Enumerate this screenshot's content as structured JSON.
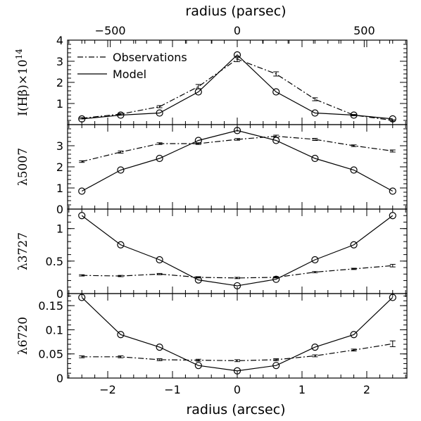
{
  "chart_data": {
    "type": "line",
    "xlabel_bottom": "radius (arcsec)",
    "xlabel_top": "radius (parsec)",
    "x_ticks_bottom": [
      "−2",
      "−1",
      "0",
      "1",
      "2"
    ],
    "x_ticks_top": [
      "−500",
      "0",
      "500"
    ],
    "xlim": [
      -2.62,
      2.62
    ],
    "top_axis_scale_parsec_per_arcsec": 255,
    "x": [
      -2.4,
      -1.8,
      -1.2,
      -0.6,
      0,
      0.6,
      1.2,
      1.8,
      2.4
    ],
    "legend": {
      "observations": "Observations",
      "model": "Model",
      "position": "top-left"
    },
    "panels": [
      {
        "ylabel": "I(Hβ)×10",
        "ylabel_exp": "14",
        "ylim": [
          0,
          4
        ],
        "yticks": [
          "1",
          "2",
          "3",
          "4"
        ],
        "model": [
          0.27,
          0.45,
          0.55,
          1.55,
          3.3,
          1.55,
          0.55,
          0.45,
          0.27
        ],
        "obs": [
          0.3,
          0.5,
          0.85,
          1.8,
          3.1,
          2.4,
          1.2,
          0.45,
          0.2
        ],
        "obs_err": [
          0.03,
          0.03,
          0.05,
          0.1,
          0.12,
          0.1,
          0.07,
          0.03,
          0.03
        ]
      },
      {
        "ylabel": "λ5007",
        "ylim": [
          0,
          4
        ],
        "yticks": [
          "0",
          "1",
          "2",
          "3"
        ],
        "model": [
          0.85,
          1.85,
          2.4,
          3.25,
          3.72,
          3.25,
          2.4,
          1.85,
          0.85
        ],
        "obs": [
          2.25,
          2.7,
          3.1,
          3.1,
          3.3,
          3.45,
          3.3,
          3.0,
          2.75
        ],
        "obs_err": [
          0.04,
          0.05,
          0.04,
          0.04,
          0.04,
          0.05,
          0.05,
          0.04,
          0.05
        ]
      },
      {
        "ylabel": "λ3727",
        "ylim": [
          0,
          1.3
        ],
        "yticks": [
          "0",
          "0.5",
          "1"
        ],
        "model": [
          1.2,
          0.75,
          0.52,
          0.21,
          0.12,
          0.22,
          0.52,
          0.75,
          1.2
        ],
        "obs": [
          0.28,
          0.27,
          0.3,
          0.25,
          0.24,
          0.25,
          0.33,
          0.38,
          0.43
        ],
        "obs_err": [
          0.01,
          0.01,
          0.01,
          0.01,
          0.01,
          0.01,
          0.01,
          0.01,
          0.02
        ]
      },
      {
        "ylabel": "λ6720",
        "ylim": [
          0,
          0.175
        ],
        "yticks": [
          "0",
          "0.05",
          "0.1",
          "0.15"
        ],
        "model": [
          0.167,
          0.09,
          0.064,
          0.026,
          0.015,
          0.026,
          0.064,
          0.09,
          0.167
        ],
        "obs": [
          0.044,
          0.044,
          0.038,
          0.037,
          0.036,
          0.038,
          0.046,
          0.058,
          0.071
        ],
        "obs_err": [
          0.002,
          0.002,
          0.002,
          0.002,
          0.002,
          0.002,
          0.002,
          0.002,
          0.006
        ]
      }
    ]
  }
}
